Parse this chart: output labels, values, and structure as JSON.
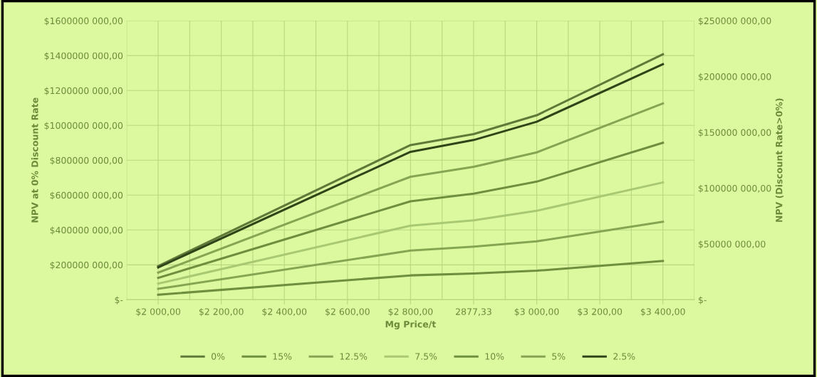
{
  "chart_data": {
    "type": "line",
    "xlabel": "Mg Price/t",
    "ylabel": "NPV at 0% Discount Rate",
    "y2label": "NPV (Discount Rate>0%)",
    "categories": [
      "$2 000,00",
      "$2 200,00",
      "$2 400,00",
      "$2 600,00",
      "$2 800,00",
      "2877,33",
      "$3 000,00",
      "$3 200,00",
      "$3 400,00"
    ],
    "series": [
      {
        "name": "0%",
        "color": "#5f7a38",
        "values": [
          193000000,
          null,
          null,
          null,
          887000000,
          950000000,
          1058000000,
          null,
          1408000000
        ]
      },
      {
        "name": "15%",
        "color": "#6f8f3f",
        "axis": "y2",
        "values": [
          4500000,
          null,
          null,
          null,
          21800000,
          23500000,
          26000000,
          null,
          34700000
        ]
      },
      {
        "name": "12.5%",
        "color": "#86a553",
        "axis": "y2",
        "values": [
          9700000,
          null,
          null,
          null,
          44100000,
          47600000,
          52300000,
          null,
          69900000
        ]
      },
      {
        "name": "7.5%",
        "color": "#a9c872",
        "axis": "y2",
        "values": [
          14400000,
          null,
          null,
          null,
          66400000,
          71100000,
          79700000,
          null,
          105100000
        ]
      },
      {
        "name": "10%",
        "color": "#6f8f3f",
        "axis": "y2",
        "values": [
          19600000,
          null,
          null,
          null,
          88200000,
          95000000,
          105800000,
          null,
          140700000
        ]
      },
      {
        "name": "5%",
        "color": "#86a553",
        "axis": "y2",
        "values": [
          24300000,
          null,
          null,
          null,
          110200000,
          119100000,
          132000000,
          null,
          175900000
        ]
      },
      {
        "name": "2.5%",
        "color": "#2f4418",
        "axis": "y2",
        "values": [
          29000000,
          null,
          null,
          null,
          132500000,
          143100000,
          159500000,
          null,
          211100000
        ]
      }
    ],
    "ylim": [
      0,
      1600000000
    ],
    "yticks": [
      {
        "value": 0,
        "label": "$-"
      },
      {
        "value": 200000000,
        "label": "$200000 000,00"
      },
      {
        "value": 400000000,
        "label": "$400000 000,00"
      },
      {
        "value": 600000000,
        "label": "$600000 000,00"
      },
      {
        "value": 800000000,
        "label": "$800000 000,00"
      },
      {
        "value": 1000000000,
        "label": "$1000000 000,00"
      },
      {
        "value": 1200000000,
        "label": "$1200000 000,00"
      },
      {
        "value": 1400000000,
        "label": "$1400000 000,00"
      },
      {
        "value": 1600000000,
        "label": "$1600000 000,00"
      }
    ],
    "y2lim": [
      0,
      250000000
    ],
    "y2ticks": [
      {
        "value": 0,
        "label": "$-"
      },
      {
        "value": 50000000,
        "label": "$50000 000,00"
      },
      {
        "value": 100000000,
        "label": "$100000 000,00"
      },
      {
        "value": 150000000,
        "label": "$150000 000,00"
      },
      {
        "value": 200000000,
        "label": "$200000 000,00"
      },
      {
        "value": 250000000,
        "label": "$250000 000,00"
      }
    ],
    "grid": true,
    "legend": "bottom",
    "marker": "none",
    "line_style": "solid"
  }
}
